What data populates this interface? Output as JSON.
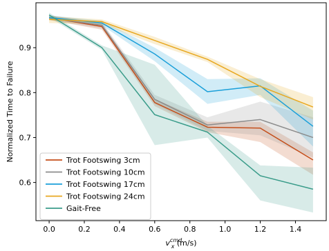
{
  "chart_data": {
    "type": "line",
    "xlabel_base": "v",
    "xlabel_sub": "x",
    "xlabel_sup": "cmd",
    "xlabel_unit": " (m/s)",
    "ylabel": "Normalized Time to Failure",
    "xlim": [
      -0.075,
      1.575
    ],
    "ylim": [
      0.515,
      1.0
    ],
    "xticks": [
      0.0,
      0.2,
      0.4,
      0.6,
      0.8,
      1.0,
      1.2,
      1.4
    ],
    "xtick_labels": [
      "0.0",
      "0.2",
      "0.4",
      "0.6",
      "0.8",
      "1.0",
      "1.2",
      "1.4"
    ],
    "yticks": [
      0.6,
      0.7,
      0.8,
      0.9
    ],
    "ytick_labels": [
      "0.6",
      "0.7",
      "0.8",
      "0.9"
    ],
    "x": [
      0.0,
      0.3,
      0.6,
      0.9,
      1.2,
      1.5
    ],
    "legend_position": "lower-left",
    "series": [
      {
        "name": "Trot Footswing 3cm",
        "color": "#c44e1a",
        "values": [
          0.967,
          0.947,
          0.778,
          0.723,
          0.721,
          0.65
        ],
        "lower": [
          0.962,
          0.94,
          0.77,
          0.712,
          0.69,
          0.617
        ],
        "upper": [
          0.972,
          0.955,
          0.786,
          0.735,
          0.735,
          0.667
        ]
      },
      {
        "name": "Trot Footswing 10cm",
        "color": "#8c8c8c",
        "values": [
          0.966,
          0.95,
          0.785,
          0.728,
          0.74,
          0.7
        ],
        "lower": [
          0.961,
          0.943,
          0.775,
          0.715,
          0.705,
          0.655
        ],
        "upper": [
          0.971,
          0.957,
          0.795,
          0.745,
          0.78,
          0.745
        ]
      },
      {
        "name": "Trot Footswing 17cm",
        "color": "#1a9fd9",
        "values": [
          0.967,
          0.955,
          0.886,
          0.802,
          0.815,
          0.725
        ],
        "lower": [
          0.962,
          0.95,
          0.87,
          0.775,
          0.795,
          0.68
        ],
        "upper": [
          0.972,
          0.96,
          0.9,
          0.83,
          0.832,
          0.76
        ]
      },
      {
        "name": "Trot Footswing 24cm",
        "color": "#e8a820",
        "values": [
          0.963,
          0.958,
          0.916,
          0.874,
          0.814,
          0.768
        ],
        "lower": [
          0.955,
          0.952,
          0.908,
          0.868,
          0.79,
          0.74
        ],
        "upper": [
          0.97,
          0.963,
          0.924,
          0.88,
          0.83,
          0.79
        ]
      },
      {
        "name": "Gait-Free",
        "color": "#3a9c8a",
        "values": [
          0.973,
          0.9,
          0.751,
          0.712,
          0.615,
          0.585
        ],
        "lower": [
          0.968,
          0.895,
          0.683,
          0.7,
          0.56,
          0.533
        ],
        "upper": [
          0.978,
          0.905,
          0.862,
          0.726,
          0.638,
          0.633
        ]
      }
    ]
  }
}
